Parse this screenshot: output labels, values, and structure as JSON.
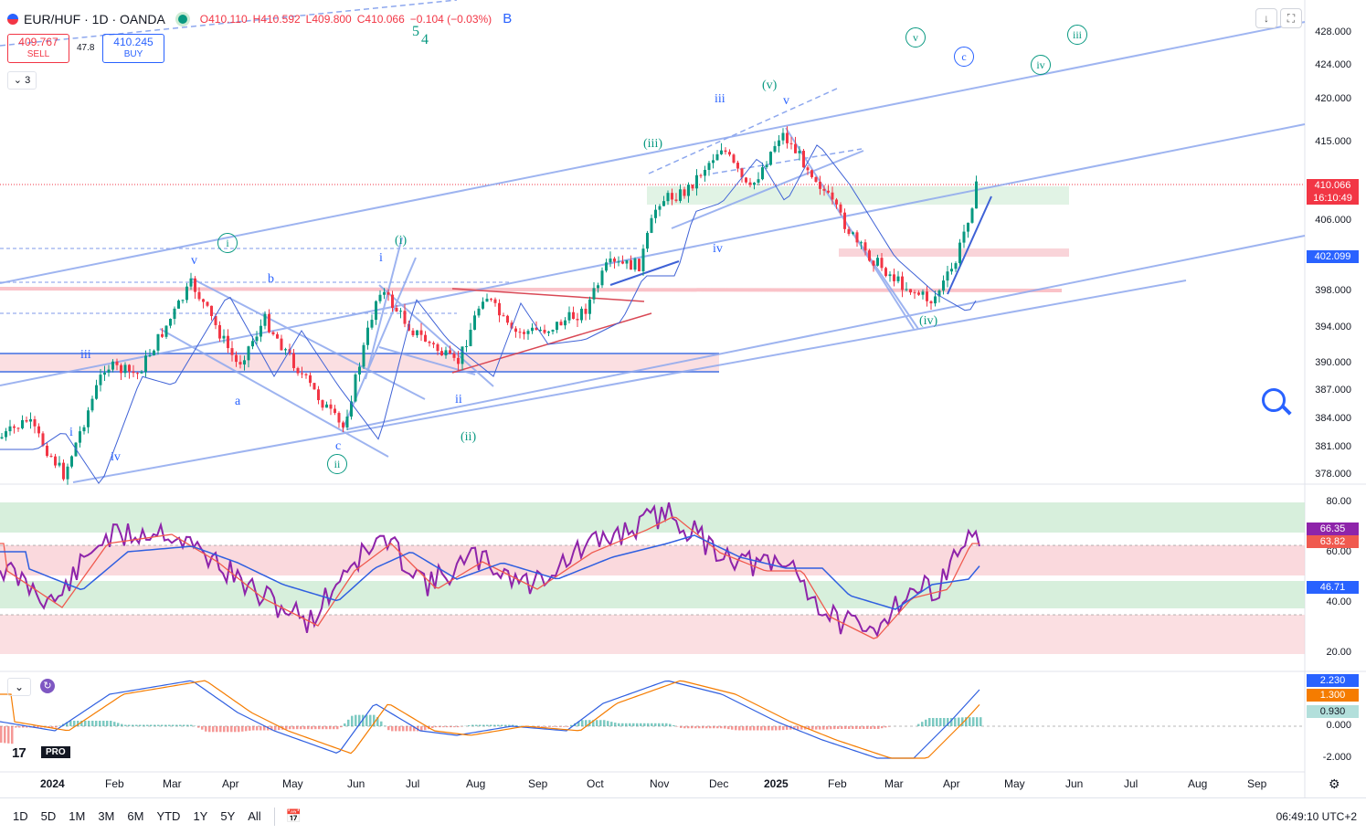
{
  "header": {
    "symbol": "EUR/HUF · 1D · OANDA",
    "open": "O410.110",
    "high": "H410.592",
    "low": "L409.800",
    "close": "C410.066",
    "change": "−0.104 (−0.03%)",
    "wave_b": "B"
  },
  "trade": {
    "sell_price": "409.767",
    "sell_label": "SELL",
    "spread": "47.8",
    "buy_price": "410.245",
    "buy_label": "BUY"
  },
  "indicator_toggle": "3",
  "price_axis": [
    "428.000",
    "424.000",
    "420.000",
    "415.000",
    "406.000",
    "398.000",
    "394.000",
    "390.000",
    "387.000",
    "384.000",
    "381.000",
    "378.000"
  ],
  "price_tags": {
    "last": "410.066",
    "countdown": "16:10:49",
    "level": "402.099"
  },
  "rsi_axis": [
    "80.00",
    "60.00",
    "40.00",
    "20.00"
  ],
  "rsi_tags": {
    "rsi": "66.35",
    "ma": "63.82",
    "slow": "46.71"
  },
  "macd_axis": [
    "0.000",
    "-2.000"
  ],
  "macd_tags": {
    "macd": "2.230",
    "signal": "1.300",
    "hist": "0.930"
  },
  "time_axis": [
    "2024",
    "Feb",
    "Mar",
    "Apr",
    "May",
    "Jun",
    "Jul",
    "Aug",
    "Sep",
    "Oct",
    "Nov",
    "Dec",
    "2025",
    "Feb",
    "Mar",
    "Apr",
    "May",
    "Jun",
    "Jul",
    "Aug",
    "Sep"
  ],
  "ranges": [
    "1D",
    "5D",
    "1M",
    "3M",
    "6M",
    "YTD",
    "1Y",
    "5Y",
    "All"
  ],
  "clock": "06:49:10 UTC+2",
  "logo_badge": "PRO",
  "waves": {
    "top_54": "5",
    "top_4": "4",
    "circ_v": "v",
    "circ_c": "c",
    "circ_iv": "iv",
    "circ_iii": "iii",
    "paren_v": "(v)",
    "v_small": "v",
    "iii_small": "iii",
    "paren_iii": "(iii)",
    "iv_small": "iv",
    "circ_i": "i",
    "paren_i": "(i)",
    "i_jun": "i",
    "v_mar": "v",
    "b_apr": "b",
    "iii_jan": "iii",
    "a_apr": "a",
    "ii_aug": "ii",
    "paren_ii": "(ii)",
    "c_may": "c",
    "circ_ii": "ii",
    "i_jan": "i",
    "iv_jan": "iv",
    "paren_iv": "(iv)"
  }
}
